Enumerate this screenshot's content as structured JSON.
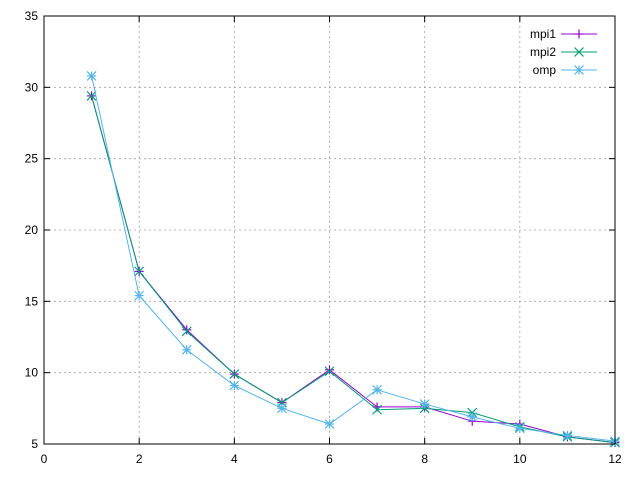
{
  "chart_data": {
    "type": "line",
    "title": "",
    "xlabel": "",
    "ylabel": "",
    "xlim": [
      0,
      12
    ],
    "ylim": [
      5,
      35
    ],
    "xticks": [
      0,
      2,
      4,
      6,
      8,
      10,
      12
    ],
    "yticks": [
      5,
      10,
      15,
      20,
      25,
      30,
      35
    ],
    "grid": true,
    "legend": "top-right",
    "series": [
      {
        "name": "mpi1",
        "color": "#9400d3",
        "marker": "plus",
        "x": [
          1,
          2,
          3,
          4,
          5,
          6,
          7,
          8,
          9,
          10,
          11,
          12
        ],
        "y": [
          29.4,
          17.1,
          13.0,
          9.9,
          7.9,
          10.2,
          7.6,
          7.6,
          6.6,
          6.4,
          5.5,
          5.1
        ]
      },
      {
        "name": "mpi2",
        "color": "#009e73",
        "marker": "cross",
        "x": [
          1,
          2,
          3,
          4,
          5,
          6,
          7,
          8,
          9,
          10,
          11,
          12
        ],
        "y": [
          29.4,
          17.1,
          12.9,
          9.9,
          7.9,
          10.1,
          7.4,
          7.5,
          7.2,
          6.2,
          5.5,
          5.1
        ]
      },
      {
        "name": "omp",
        "color": "#56b4e9",
        "marker": "star",
        "x": [
          1,
          2,
          3,
          4,
          5,
          6,
          7,
          8,
          9,
          10,
          11,
          12
        ],
        "y": [
          30.8,
          15.4,
          11.6,
          9.1,
          7.5,
          6.4,
          8.8,
          7.8,
          6.9,
          6.1,
          5.6,
          5.2
        ]
      }
    ]
  }
}
